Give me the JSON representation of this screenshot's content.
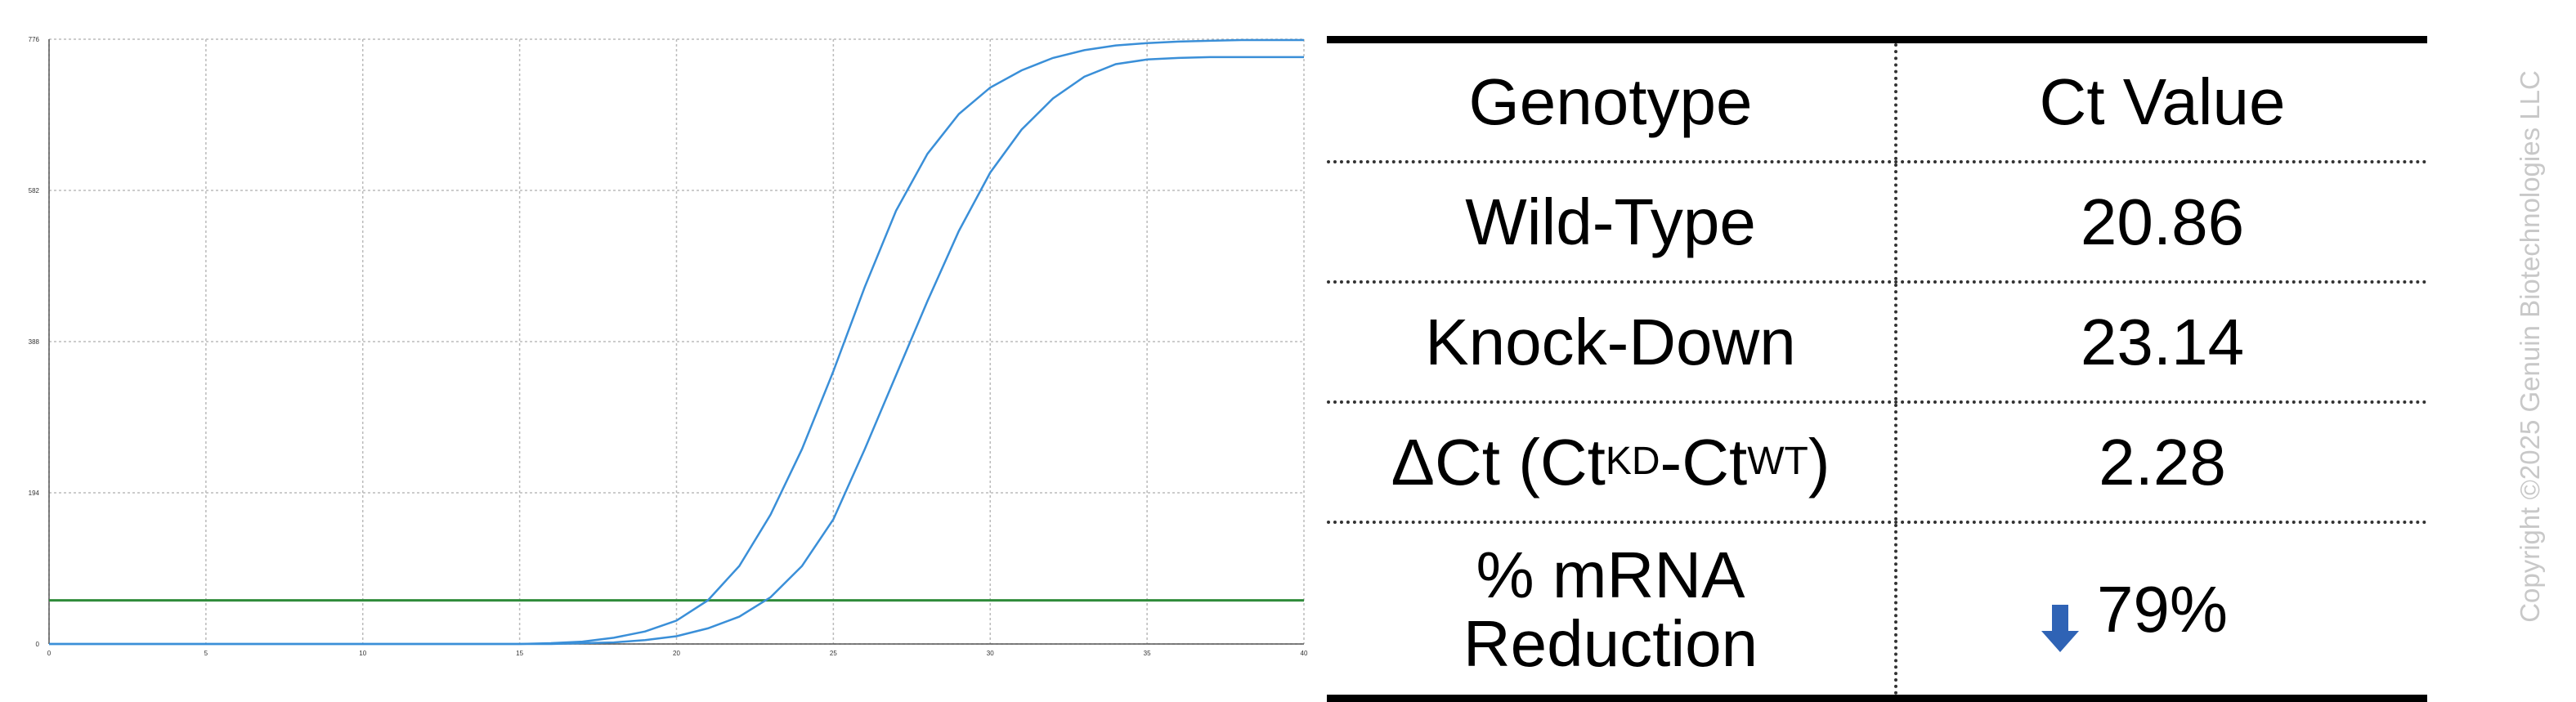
{
  "chart_data": {
    "type": "line",
    "xlim": [
      0,
      40
    ],
    "ylim": [
      0,
      776
    ],
    "x_ticks": [
      "0",
      "5",
      "10",
      "15",
      "20",
      "25",
      "30",
      "35",
      "40"
    ],
    "y_ticks": [
      "0",
      "194",
      "388",
      "582",
      "776"
    ],
    "grid": true,
    "threshold": 56,
    "series": [
      {
        "x": [
          0,
          1,
          2,
          3,
          4,
          5,
          6,
          7,
          8,
          9,
          10,
          11,
          12,
          13,
          14,
          15,
          16,
          17,
          18,
          19,
          20,
          21,
          22,
          23,
          24,
          25,
          26,
          27,
          28,
          29,
          30,
          31,
          32,
          33,
          34,
          35,
          36,
          37,
          38,
          39,
          40
        ],
        "y": [
          0,
          0,
          0,
          0,
          0,
          0,
          0,
          0,
          0,
          0,
          0,
          0,
          0,
          0,
          0,
          0,
          1,
          3,
          8,
          16,
          30,
          56,
          100,
          166,
          250,
          350,
          458,
          556,
          629,
          680,
          714,
          736,
          752,
          762,
          768,
          771,
          773,
          774,
          775,
          775,
          775
        ]
      },
      {
        "x": [
          0,
          1,
          2,
          3,
          4,
          5,
          6,
          7,
          8,
          9,
          10,
          11,
          12,
          13,
          14,
          15,
          16,
          17,
          18,
          19,
          20,
          21,
          22,
          23,
          24,
          25,
          26,
          27,
          28,
          29,
          30,
          31,
          32,
          33,
          34,
          35,
          36,
          37,
          38,
          39,
          40
        ],
        "y": [
          0,
          0,
          0,
          0,
          0,
          0,
          0,
          0,
          0,
          0,
          0,
          0,
          0,
          0,
          0,
          0,
          0,
          1,
          2,
          5,
          10,
          20,
          35,
          60,
          100,
          160,
          250,
          345,
          440,
          530,
          605,
          660,
          700,
          728,
          744,
          750,
          752,
          753,
          753,
          753,
          753
        ]
      }
    ]
  },
  "colors": {
    "curve": "#3a8fd8",
    "threshold": "#2e8b3a",
    "grid": "#bbbbbb",
    "arrow": "#2f63b5"
  },
  "table": {
    "header": {
      "genotype": "Genotype",
      "ct": "Ct Value"
    },
    "wild_type": {
      "label": "Wild-Type",
      "value": "20.86"
    },
    "knock_down": {
      "label": "Knock-Down",
      "value": "23.14"
    },
    "delta_ct": {
      "prefix": "ΔCt (Ct",
      "sub1": "KD",
      "mid": "-Ct",
      "sub2": "WT",
      "suffix": ")",
      "value": "2.28"
    },
    "reduction": {
      "label_line1": "% mRNA",
      "label_line2": "Reduction",
      "value": "79%",
      "icon": "down-arrow-icon"
    }
  },
  "copyright": "Copyright ©2025 Genuin Biotechnologies LLC"
}
